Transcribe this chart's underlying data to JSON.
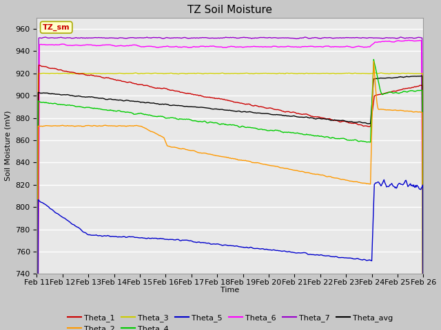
{
  "title": "TZ Soil Moisture",
  "xlabel": "Time",
  "ylabel": "Soil Moisture (mV)",
  "ylim": [
    740,
    970
  ],
  "yticks": [
    740,
    760,
    780,
    800,
    820,
    840,
    860,
    880,
    900,
    920,
    940,
    960
  ],
  "xtick_labels": [
    "Feb 11",
    "Feb 12",
    "Feb 13",
    "Feb 14",
    "Feb 15",
    "Feb 16",
    "Feb 17",
    "Feb 18",
    "Feb 19",
    "Feb 20",
    "Feb 21",
    "Feb 22",
    "Feb 23",
    "Feb 24",
    "Feb 25",
    "Feb 26"
  ],
  "legend_box_text": "TZ_sm",
  "legend_box_facecolor": "#ffffcc",
  "legend_box_edgecolor": "#aaaa00",
  "series_colors": {
    "Theta_1": "#cc0000",
    "Theta_2": "#ff9900",
    "Theta_3": "#cccc00",
    "Theta_4": "#00cc00",
    "Theta_5": "#0000cc",
    "Theta_6": "#ff00ff",
    "Theta_7": "#9900cc",
    "Theta_avg": "#000000"
  },
  "fig_facecolor": "#c8c8c8",
  "ax_facecolor": "#e8e8e8",
  "grid_color": "#ffffff",
  "title_fontsize": 11,
  "axis_fontsize": 8,
  "tick_fontsize": 8
}
